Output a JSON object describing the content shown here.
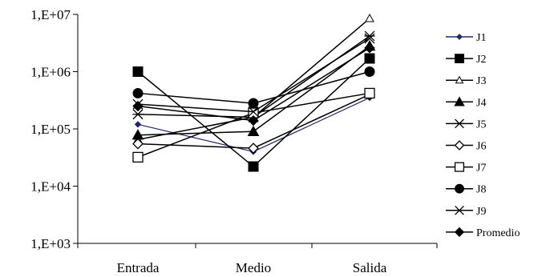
{
  "chart_data": {
    "type": "line",
    "title": "",
    "xlabel": "",
    "ylabel": "",
    "yscale": "log",
    "ylim": [
      1000,
      10000000
    ],
    "yticks": [
      {
        "value": 1000,
        "label": "1,E+03"
      },
      {
        "value": 10000,
        "label": "1,E+04"
      },
      {
        "value": 100000,
        "label": "1,E+05"
      },
      {
        "value": 1000000,
        "label": "1,E+06"
      },
      {
        "value": 10000000,
        "label": "1,E+07"
      }
    ],
    "categories": [
      "Entrada",
      "Medio",
      "Salida"
    ],
    "grid": false,
    "legend_position": "right",
    "series": [
      {
        "name": "J1",
        "marker": "small-diamond",
        "color": "#1f2a6b",
        "values": [
          120000,
          40000,
          350000
        ]
      },
      {
        "name": "J2",
        "marker": "square",
        "color": "#000000",
        "values": [
          1000000,
          22000,
          1700000
        ]
      },
      {
        "name": "J3",
        "marker": "triangle-open",
        "color": "#000000",
        "values": [
          65000,
          160000,
          8500000
        ]
      },
      {
        "name": "J4",
        "marker": "triangle",
        "color": "#000000",
        "values": [
          78000,
          90000,
          2800000
        ]
      },
      {
        "name": "J5",
        "marker": "asterisk",
        "color": "#000000",
        "values": [
          180000,
          160000,
          4200000
        ]
      },
      {
        "name": "J6",
        "marker": "diamond-open",
        "color": "#000000",
        "values": [
          55000,
          46000,
          400000
        ]
      },
      {
        "name": "J7",
        "marker": "square-open",
        "color": "#000000",
        "values": [
          32000,
          190000,
          420000
        ]
      },
      {
        "name": "J8",
        "marker": "circle",
        "color": "#000000",
        "values": [
          420000,
          280000,
          1000000
        ]
      },
      {
        "name": "J9",
        "marker": "x",
        "color": "#000000",
        "values": [
          270000,
          200000,
          3800000
        ]
      },
      {
        "name": "Promedio",
        "marker": "diamond",
        "color": "#000000",
        "values": [
          250000,
          140000,
          2600000
        ]
      }
    ]
  }
}
